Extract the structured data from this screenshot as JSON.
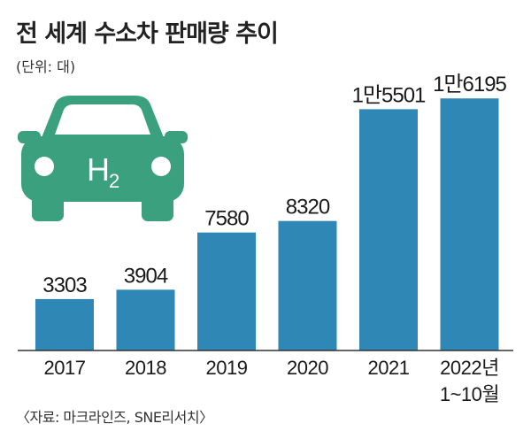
{
  "title": "전 세계 수소차 판매량 추이",
  "unit": "(단위: 대)",
  "source": "〈자료: 마크라인즈, SNE리서치〉",
  "icon": {
    "name": "hydrogen-car-icon",
    "label": "H",
    "subscript": "2",
    "color": "#3aa07e"
  },
  "colors": {
    "bar": "#2f87b6"
  },
  "chart_data": {
    "type": "bar",
    "title": "전 세계 수소차 판매량 추이",
    "ylabel": "",
    "xlabel": "",
    "ylim": [
      0,
      17400
    ],
    "categories": [
      [
        "2017"
      ],
      [
        "2018"
      ],
      [
        "2019"
      ],
      [
        "2020"
      ],
      [
        "2021"
      ],
      [
        "2022년",
        "1~10월"
      ]
    ],
    "values": [
      3303,
      3904,
      7580,
      8320,
      15501,
      16195
    ],
    "value_labels": [
      "3303",
      "3904",
      "7580",
      "8320",
      "1만5501",
      "1만6195"
    ]
  }
}
